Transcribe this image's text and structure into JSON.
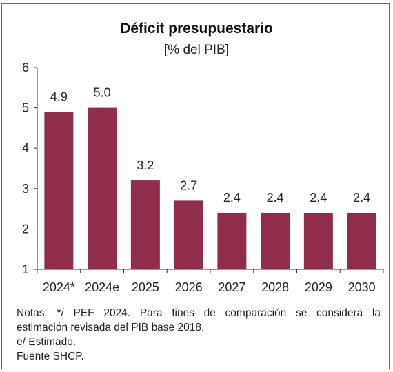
{
  "chart_data": {
    "type": "bar",
    "title": "Déficit presupuestario",
    "subtitle": "[% del PIB]",
    "categories": [
      "2024*",
      "2024e",
      "2025",
      "2026",
      "2027",
      "2028",
      "2029",
      "2030"
    ],
    "values": [
      4.9,
      5.0,
      3.2,
      2.7,
      2.4,
      2.4,
      2.4,
      2.4
    ],
    "value_labels": [
      "4.9",
      "5.0",
      "3.2",
      "2.7",
      "2.4",
      "2.4",
      "2.4",
      "2.4"
    ],
    "ylim": [
      1,
      6
    ],
    "yticks": [
      "1",
      "2",
      "3",
      "4",
      "5",
      "6"
    ],
    "bar_color": "#8f2d4b",
    "grid": false,
    "legend": "none"
  },
  "notes": {
    "line1": "Notas: */ PEF 2024. Para fines de comparación se considera la",
    "line2": "estimación revisada del PIB base 2018.",
    "line3": "e/ Estimado.",
    "line4": "Fuente SHCP."
  }
}
